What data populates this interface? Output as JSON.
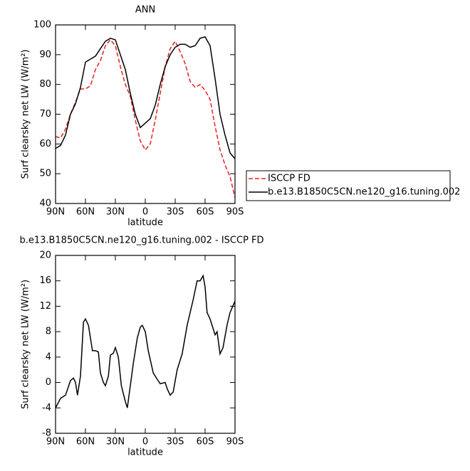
{
  "chart_data": [
    {
      "type": "line",
      "title": "ANN",
      "xlabel": "latitude",
      "ylabel": "Surf clearsky net LW (W/m²)",
      "xlim": [
        90,
        -90
      ],
      "ylim": [
        40,
        100
      ],
      "xticks": [
        {
          "value": 90,
          "label": "90N"
        },
        {
          "value": 60,
          "label": "60N"
        },
        {
          "value": 30,
          "label": "30N"
        },
        {
          "value": 0,
          "label": "0"
        },
        {
          "value": -30,
          "label": "30S"
        },
        {
          "value": -60,
          "label": "60S"
        },
        {
          "value": -90,
          "label": "90S"
        }
      ],
      "yticks": [
        40,
        50,
        60,
        70,
        80,
        90,
        100
      ],
      "legend": "outside right",
      "x": [
        90,
        85,
        80,
        75,
        70,
        65,
        60,
        55,
        50,
        45,
        40,
        35,
        30,
        25,
        20,
        15,
        10,
        5,
        0,
        -5,
        -10,
        -15,
        -20,
        -25,
        -30,
        -35,
        -40,
        -45,
        -50,
        -55,
        -60,
        -65,
        -70,
        -75,
        -80,
        -85,
        -90
      ],
      "series": [
        {
          "name": "ISCCP FD",
          "color": "#e8201e",
          "dashed": true,
          "values": [
            62.5,
            62,
            65,
            70,
            74,
            78.5,
            78.5,
            79.5,
            85,
            88,
            93,
            95,
            93,
            86,
            80,
            76,
            68,
            61,
            58,
            60,
            68,
            77,
            86,
            92,
            94.5,
            91,
            87,
            81,
            79,
            80,
            78,
            75,
            66,
            58,
            53,
            49,
            42
          ]
        },
        {
          "name": "b.e13.B1850C5CN.ne120_g16.tuning.002",
          "color": "#000000",
          "dashed": false,
          "values": [
            58.5,
            59.5,
            63,
            70,
            73.5,
            79,
            87.5,
            88.5,
            89.5,
            92,
            94.5,
            95.5,
            95,
            90,
            85,
            77,
            70,
            65.5,
            67,
            68.5,
            73,
            80,
            86,
            90,
            92.5,
            93.5,
            93.5,
            92.5,
            93,
            95.5,
            96,
            93,
            82,
            70,
            63,
            57,
            55
          ]
        }
      ]
    },
    {
      "type": "line",
      "title": "b.e13.B1850C5CN.ne120_g16.tuning.002 - ISCCP FD",
      "xlabel": "latitude",
      "ylabel": "Surf clearsky net LW (W/m²)",
      "xlim": [
        90,
        -90
      ],
      "ylim": [
        -8,
        20
      ],
      "xticks": [
        {
          "value": 90,
          "label": "90N"
        },
        {
          "value": 60,
          "label": "60N"
        },
        {
          "value": 30,
          "label": "30N"
        },
        {
          "value": 0,
          "label": "0"
        },
        {
          "value": -30,
          "label": "30S"
        },
        {
          "value": -60,
          "label": "60S"
        },
        {
          "value": -90,
          "label": "90S"
        }
      ],
      "yticks": [
        -8,
        -4,
        0,
        4,
        8,
        12,
        16,
        20
      ],
      "x": [
        90,
        85,
        80,
        75,
        72,
        70,
        68,
        65,
        62,
        60,
        57,
        53,
        50,
        47,
        45,
        42,
        40,
        37,
        35,
        32,
        30,
        27,
        24,
        20,
        18,
        15,
        12,
        8,
        5,
        3,
        0,
        -3,
        -8,
        -12,
        -15,
        -20,
        -22,
        -25,
        -28,
        -32,
        -37,
        -42,
        -48,
        -52,
        -55,
        -58,
        -60,
        -62,
        -65,
        -70,
        -72,
        -75,
        -78,
        -82,
        -85,
        -90
      ],
      "series": [
        {
          "color": "#000000",
          "dashed": false,
          "values": [
            -4,
            -2.5,
            -2,
            0.3,
            0.7,
            0,
            -2,
            1,
            9.5,
            10,
            9,
            5,
            5,
            4.8,
            1.5,
            0,
            -0.5,
            1,
            4.3,
            4.6,
            5.5,
            4,
            -0.5,
            -3,
            -4,
            -0.5,
            3,
            7,
            8.7,
            9,
            8,
            5,
            1.5,
            0.5,
            -0.2,
            0,
            -1,
            -2,
            -1.5,
            2,
            4.5,
            9,
            13,
            16,
            16,
            16.8,
            15,
            11,
            10,
            7.5,
            8,
            4.5,
            5.5,
            9,
            11,
            12.8
          ]
        }
      ]
    }
  ]
}
